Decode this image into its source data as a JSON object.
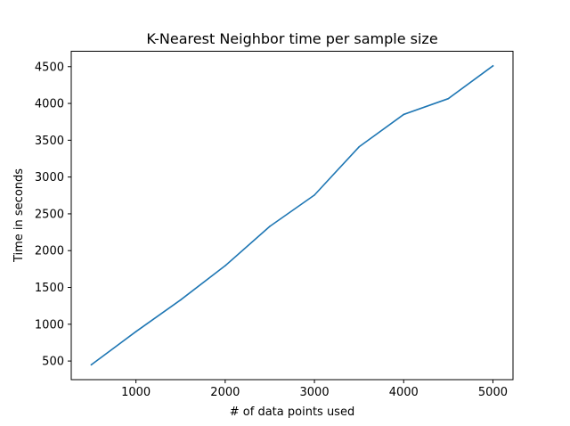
{
  "chart_data": {
    "type": "line",
    "title": "K-Nearest Neighbor time per sample size",
    "xlabel": "# of data points used",
    "ylabel": "Time in seconds",
    "xlim": [
      275,
      5225
    ],
    "ylim": [
      247,
      4709
    ],
    "x_ticks": [
      1000,
      2000,
      3000,
      4000,
      5000
    ],
    "y_ticks": [
      500,
      1000,
      1500,
      2000,
      2500,
      3000,
      3500,
      4000,
      4500
    ],
    "grid": false,
    "series": [
      {
        "color": "#1f77b4",
        "x": [
          500,
          1000,
          1500,
          2000,
          2500,
          3000,
          3500,
          4000,
          4500,
          5000
        ],
        "y": [
          450,
          900,
          1330,
          1795,
          2330,
          2755,
          3410,
          3850,
          4065,
          4510
        ]
      }
    ]
  }
}
